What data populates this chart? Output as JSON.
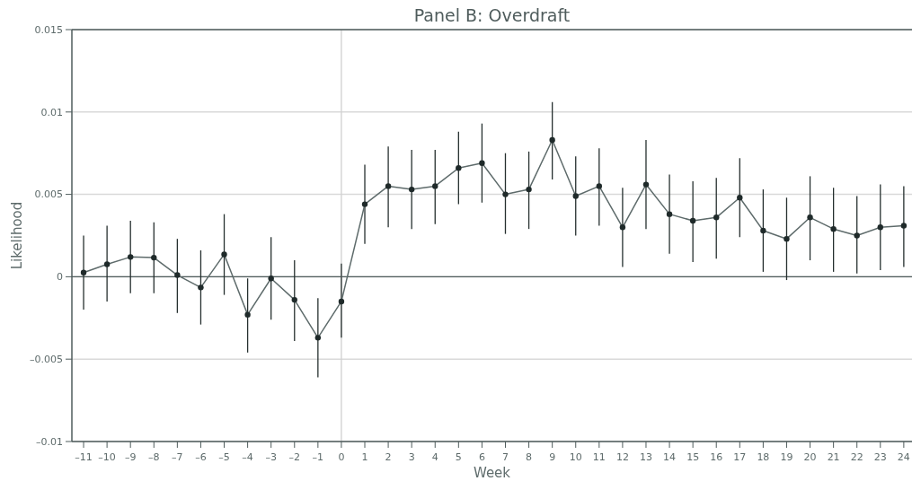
{
  "chart_data": {
    "type": "line",
    "title": "Panel B: Overdraft",
    "xlabel": "Week",
    "ylabel": "Likelihood",
    "x": [
      -11,
      -10,
      -9,
      -8,
      -7,
      -6,
      -5,
      -4,
      -3,
      -2,
      -1,
      0,
      1,
      2,
      3,
      4,
      5,
      6,
      7,
      8,
      9,
      10,
      11,
      12,
      13,
      14,
      15,
      16,
      17,
      18,
      19,
      20,
      21,
      22,
      23,
      24
    ],
    "series": [
      {
        "color": "#5e6b6b",
        "values": [
          0.00025,
          0.00076,
          0.0012,
          0.00116,
          0.0001,
          -0.00065,
          0.00136,
          -0.0023,
          -0.0001,
          -0.0014,
          -0.0037,
          -0.0015,
          0.0044,
          0.0055,
          0.0053,
          0.0055,
          0.0066,
          0.0069,
          0.005,
          0.0053,
          0.0083,
          0.0049,
          0.0055,
          0.003,
          0.0056,
          0.0038,
          0.0034,
          0.0036,
          0.0048,
          0.0028,
          0.0023,
          0.0036,
          0.0029,
          0.0025,
          0.003,
          0.0031
        ],
        "errors": [
          [
            -0.002,
            0.0025
          ],
          [
            -0.0015,
            0.0031
          ],
          [
            -0.001,
            0.0034
          ],
          [
            -0.001,
            0.0033
          ],
          [
            -0.0022,
            0.0023
          ],
          [
            -0.0029,
            0.0016
          ],
          [
            -0.0011,
            0.0038
          ],
          [
            -0.0046,
            -0.0001
          ],
          [
            -0.0026,
            0.0024
          ],
          [
            -0.0039,
            0.001
          ],
          [
            -0.0061,
            -0.0013
          ],
          [
            -0.0037,
            0.0008
          ],
          [
            0.002,
            0.0068
          ],
          [
            0.003,
            0.0079
          ],
          [
            0.0029,
            0.0077
          ],
          [
            0.0032,
            0.0077
          ],
          [
            0.0044,
            0.0088
          ],
          [
            0.0045,
            0.0093
          ],
          [
            0.0026,
            0.0075
          ],
          [
            0.0029,
            0.0076
          ],
          [
            0.0059,
            0.0106
          ],
          [
            0.0025,
            0.0073
          ],
          [
            0.0031,
            0.0078
          ],
          [
            0.0006,
            0.0054
          ],
          [
            0.0029,
            0.0083
          ],
          [
            0.0014,
            0.0062
          ],
          [
            0.0009,
            0.0058
          ],
          [
            0.0011,
            0.006
          ],
          [
            0.0024,
            0.0072
          ],
          [
            0.0003,
            0.0053
          ],
          [
            -0.0002,
            0.0048
          ],
          [
            0.001,
            0.0061
          ],
          [
            0.0003,
            0.0054
          ],
          [
            0.0002,
            0.0049
          ],
          [
            0.0004,
            0.0056
          ],
          [
            0.0006,
            0.0055
          ]
        ]
      }
    ],
    "xlim": [
      -11.5,
      24.35
    ],
    "xticks": [
      {
        "value": -11,
        "label": "–11"
      },
      {
        "value": -10,
        "label": "–10"
      },
      {
        "value": -9,
        "label": "–9"
      },
      {
        "value": -8,
        "label": "–8"
      },
      {
        "value": -7,
        "label": "–7"
      },
      {
        "value": -6,
        "label": "–6"
      },
      {
        "value": -5,
        "label": "–5"
      },
      {
        "value": -4,
        "label": "–4"
      },
      {
        "value": -3,
        "label": "–3"
      },
      {
        "value": -2,
        "label": "–2"
      },
      {
        "value": -1,
        "label": "–1"
      },
      0,
      1,
      2,
      3,
      4,
      5,
      6,
      7,
      8,
      9,
      10,
      11,
      12,
      13,
      14,
      15,
      16,
      17,
      18,
      19,
      20,
      21,
      22,
      23,
      24
    ],
    "ylim": [
      -0.01,
      0.015
    ],
    "yticks": [
      {
        "value": -0.01,
        "label": "–0.01"
      },
      {
        "value": -0.005,
        "label": "–0.005"
      },
      0,
      0.005,
      0.01,
      0.015
    ],
    "grid": "y",
    "marker": "circle",
    "line_style": "solid",
    "ref_lines": [
      {
        "axis": "y",
        "value": 0,
        "color": "#4f5c5c"
      },
      {
        "axis": "x",
        "value": 0,
        "color": "#d0d0d0"
      }
    ]
  }
}
